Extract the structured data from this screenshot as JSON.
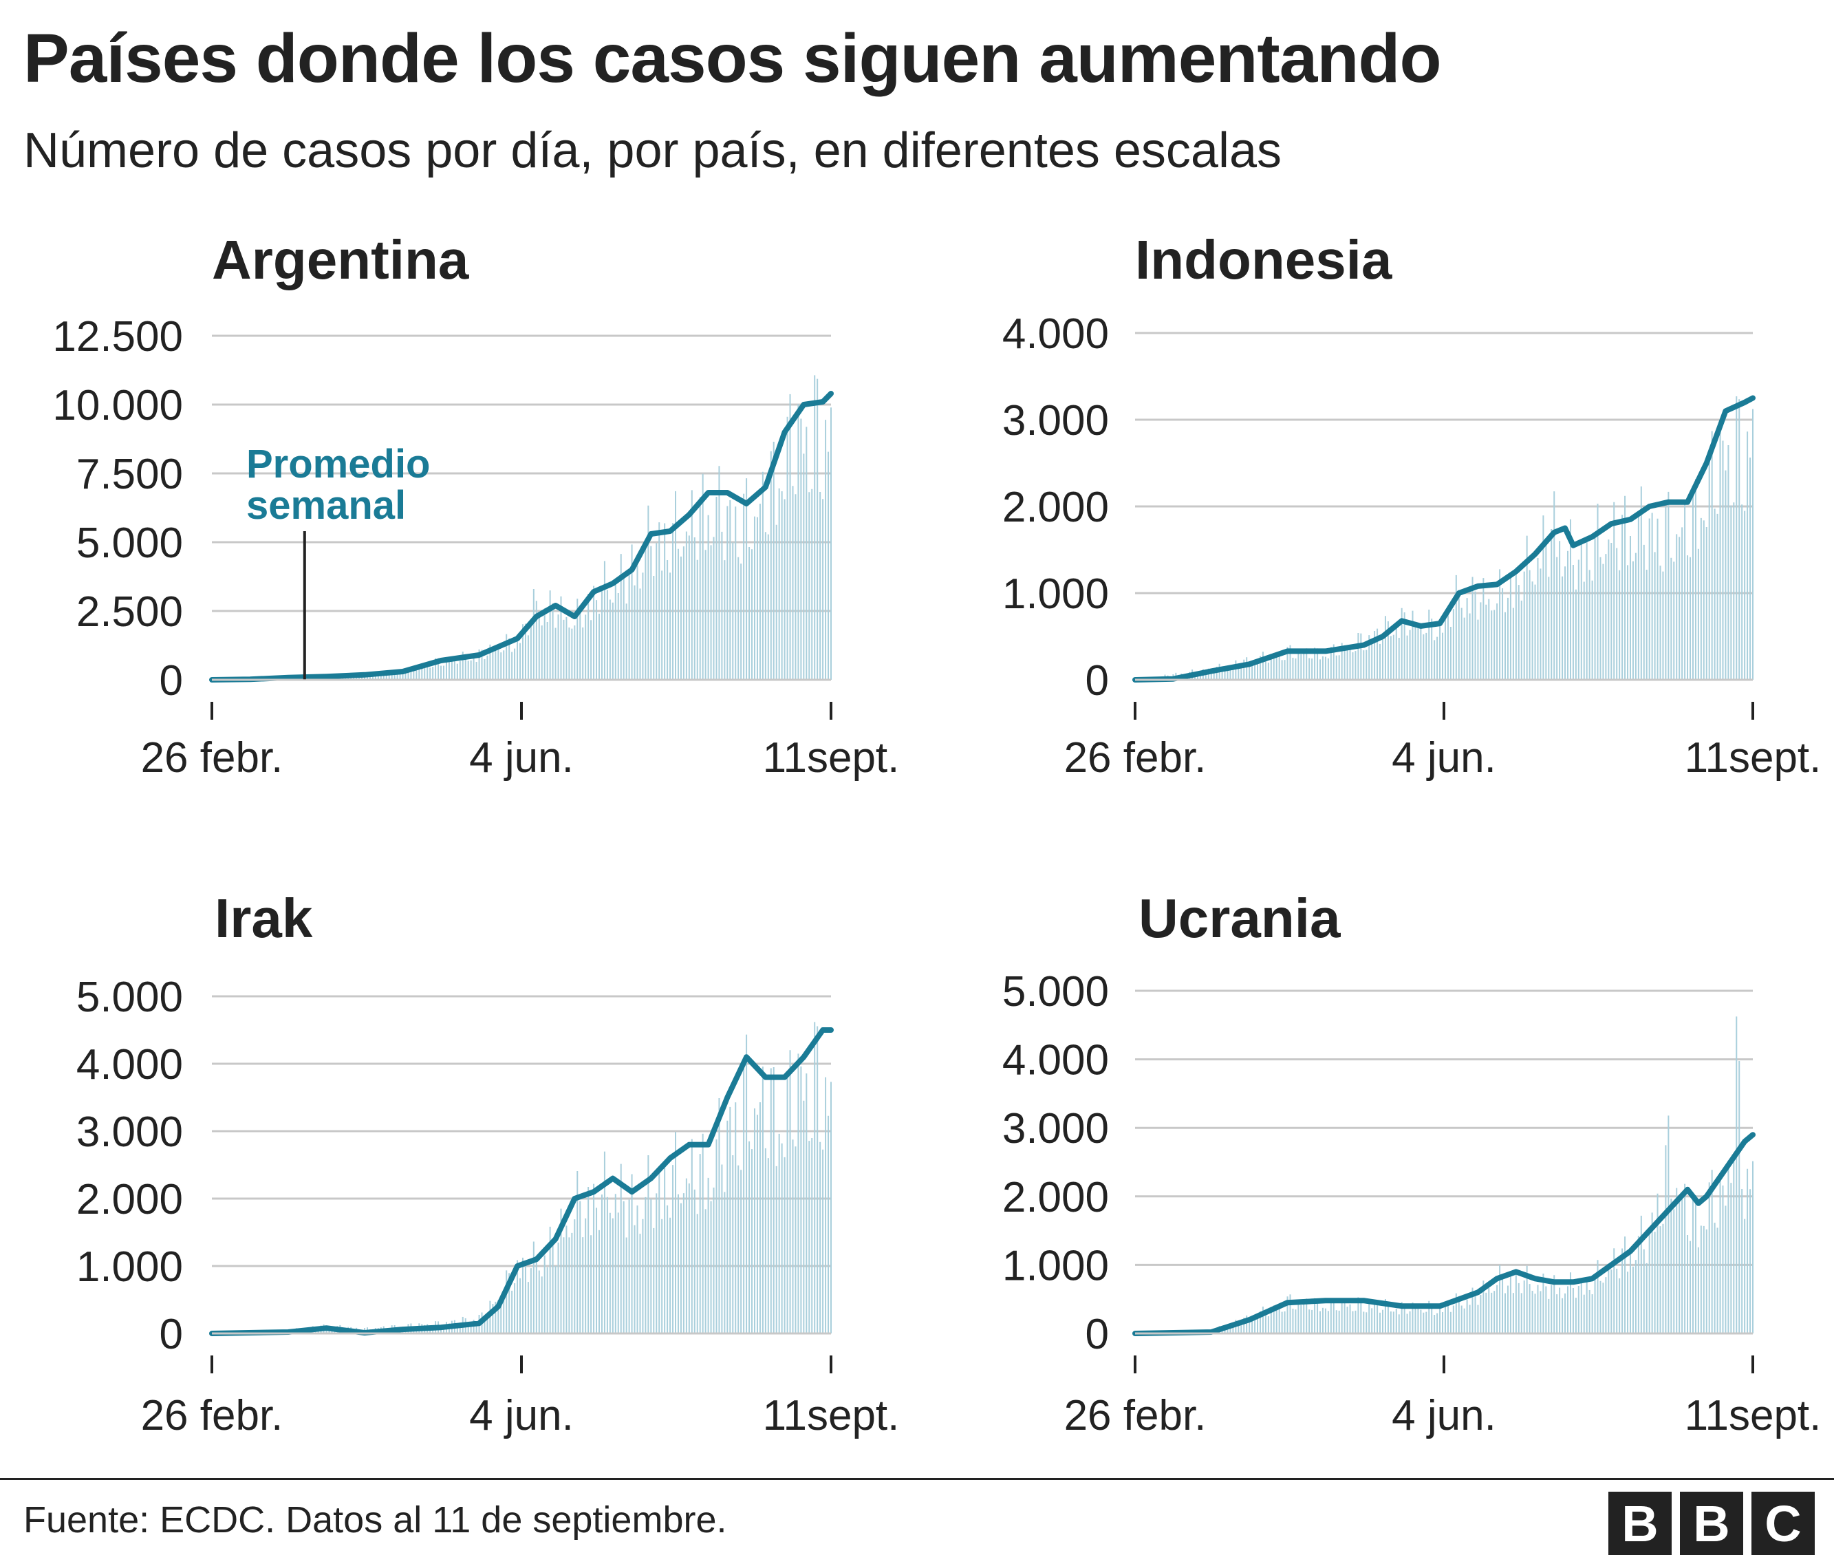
{
  "title": "Países donde los casos siguen aumentando",
  "subtitle": "Número de casos por día, por país, en diferentes escalas",
  "source": "Fuente: ECDC. Datos al 11 de septiembre.",
  "logo": [
    "B",
    "B",
    "C"
  ],
  "colors": {
    "line": "#1a7b96",
    "bars": "#a9cfdc",
    "grid": "#c8c8c8",
    "axis": "#222222",
    "annotation": "#1a7b96"
  },
  "chart_data": [
    {
      "type": "bar",
      "title": "Argentina",
      "x_ticks": [
        "26 febr.",
        "4 jun.",
        "11sept."
      ],
      "x_range": [
        "2020-02-26",
        "2020-09-11"
      ],
      "ylim": [
        0,
        12500
      ],
      "y_ticks": [
        "0",
        "2.500",
        "5.000",
        "7.500",
        "10.000",
        "12.500"
      ],
      "y_tick_values": [
        0,
        2500,
        5000,
        7500,
        10000,
        12500
      ],
      "series": [
        {
          "name": "Promedio semanal",
          "type": "line",
          "points": [
            [
              0,
              0
            ],
            [
              14,
              20
            ],
            [
              28,
              80
            ],
            [
              42,
              120
            ],
            [
              56,
              180
            ],
            [
              70,
              300
            ],
            [
              84,
              700
            ],
            [
              98,
              900
            ],
            [
              112,
              1500
            ],
            [
              119,
              2300
            ],
            [
              126,
              2700
            ],
            [
              133,
              2300
            ],
            [
              140,
              3200
            ],
            [
              147,
              3500
            ],
            [
              154,
              4000
            ],
            [
              161,
              5300
            ],
            [
              168,
              5400
            ],
            [
              175,
              6000
            ],
            [
              182,
              6800
            ],
            [
              189,
              6800
            ],
            [
              196,
              6400
            ],
            [
              203,
              7000
            ],
            [
              210,
              9000
            ],
            [
              217,
              10000
            ],
            [
              224,
              10100
            ],
            [
              227,
              10400
            ]
          ]
        }
      ],
      "daily_envelope": [
        [
          0,
          0
        ],
        [
          28,
          120
        ],
        [
          56,
          250
        ],
        [
          70,
          400
        ],
        [
          84,
          900
        ],
        [
          98,
          1200
        ],
        [
          112,
          1900
        ],
        [
          119,
          3600
        ],
        [
          126,
          3400
        ],
        [
          133,
          2800
        ],
        [
          140,
          4000
        ],
        [
          147,
          4600
        ],
        [
          154,
          5200
        ],
        [
          161,
          6600
        ],
        [
          168,
          6800
        ],
        [
          175,
          7300
        ],
        [
          182,
          8300
        ],
        [
          189,
          7800
        ],
        [
          196,
          7600
        ],
        [
          203,
          8600
        ],
        [
          210,
          10800
        ],
        [
          217,
          11900
        ],
        [
          224,
          11800
        ],
        [
          227,
          12200
        ]
      ],
      "annotation": {
        "label": [
          "Promedio",
          "semanal"
        ],
        "x": 34
      }
    },
    {
      "type": "bar",
      "title": "Indonesia",
      "x_ticks": [
        "26 febr.",
        "4 jun.",
        "11sept."
      ],
      "x_range": [
        "2020-02-26",
        "2020-09-11"
      ],
      "ylim": [
        0,
        4000
      ],
      "y_ticks": [
        "0",
        "1.000",
        "2.000",
        "3.000",
        "4.000"
      ],
      "y_tick_values": [
        0,
        1000,
        2000,
        3000,
        4000
      ],
      "series": [
        {
          "name": "",
          "type": "line",
          "points": [
            [
              0,
              0
            ],
            [
              14,
              10
            ],
            [
              28,
              100
            ],
            [
              42,
              180
            ],
            [
              56,
              330
            ],
            [
              70,
              330
            ],
            [
              84,
              400
            ],
            [
              91,
              500
            ],
            [
              98,
              680
            ],
            [
              105,
              620
            ],
            [
              112,
              650
            ],
            [
              119,
              1000
            ],
            [
              126,
              1080
            ],
            [
              133,
              1100
            ],
            [
              140,
              1250
            ],
            [
              147,
              1450
            ],
            [
              154,
              1700
            ],
            [
              158,
              1750
            ],
            [
              161,
              1550
            ],
            [
              168,
              1650
            ],
            [
              175,
              1800
            ],
            [
              182,
              1850
            ],
            [
              189,
              2000
            ],
            [
              196,
              2050
            ],
            [
              203,
              2050
            ],
            [
              210,
              2500
            ],
            [
              217,
              3100
            ],
            [
              224,
              3200
            ],
            [
              227,
              3250
            ]
          ]
        }
      ],
      "daily_envelope": [
        [
          0,
          0
        ],
        [
          28,
          160
        ],
        [
          56,
          420
        ],
        [
          70,
          400
        ],
        [
          84,
          600
        ],
        [
          98,
          900
        ],
        [
          112,
          800
        ],
        [
          119,
          1300
        ],
        [
          126,
          1250
        ],
        [
          133,
          1250
        ],
        [
          140,
          1500
        ],
        [
          147,
          1800
        ],
        [
          154,
          2300
        ],
        [
          161,
          1800
        ],
        [
          168,
          2000
        ],
        [
          175,
          2200
        ],
        [
          182,
          2300
        ],
        [
          189,
          2300
        ],
        [
          196,
          2250
        ],
        [
          203,
          2300
        ],
        [
          210,
          2900
        ],
        [
          217,
          3500
        ],
        [
          224,
          3500
        ],
        [
          227,
          3850
        ]
      ]
    },
    {
      "type": "bar",
      "title": "Irak",
      "x_ticks": [
        "26 febr.",
        "4 jun.",
        "11sept."
      ],
      "x_range": [
        "2020-02-26",
        "2020-09-11"
      ],
      "ylim": [
        0,
        5000
      ],
      "y_ticks": [
        "0",
        "1.000",
        "2.000",
        "3.000",
        "4.000",
        "5.000"
      ],
      "y_tick_values": [
        0,
        1000,
        2000,
        3000,
        4000,
        5000
      ],
      "series": [
        {
          "name": "",
          "type": "line",
          "points": [
            [
              0,
              0
            ],
            [
              28,
              20
            ],
            [
              42,
              80
            ],
            [
              56,
              10
            ],
            [
              70,
              60
            ],
            [
              84,
              90
            ],
            [
              98,
              150
            ],
            [
              105,
              400
            ],
            [
              112,
              1000
            ],
            [
              119,
              1100
            ],
            [
              126,
              1400
            ],
            [
              133,
              2000
            ],
            [
              140,
              2100
            ],
            [
              147,
              2300
            ],
            [
              154,
              2100
            ],
            [
              161,
              2300
            ],
            [
              168,
              2600
            ],
            [
              175,
              2800
            ],
            [
              182,
              2800
            ],
            [
              189,
              3500
            ],
            [
              196,
              4100
            ],
            [
              203,
              3800
            ],
            [
              210,
              3800
            ],
            [
              217,
              4100
            ],
            [
              224,
              4500
            ],
            [
              227,
              4500
            ]
          ]
        }
      ],
      "daily_envelope": [
        [
          0,
          0
        ],
        [
          28,
          60
        ],
        [
          42,
          150
        ],
        [
          56,
          90
        ],
        [
          70,
          150
        ],
        [
          84,
          200
        ],
        [
          98,
          300
        ],
        [
          105,
          700
        ],
        [
          112,
          1300
        ],
        [
          119,
          1400
        ],
        [
          126,
          1800
        ],
        [
          133,
          2400
        ],
        [
          140,
          2600
        ],
        [
          147,
          2800
        ],
        [
          154,
          2500
        ],
        [
          161,
          2700
        ],
        [
          168,
          3000
        ],
        [
          175,
          3100
        ],
        [
          182,
          3200
        ],
        [
          189,
          3900
        ],
        [
          196,
          4600
        ],
        [
          203,
          4400
        ],
        [
          210,
          4300
        ],
        [
          217,
          5000
        ],
        [
          224,
          4900
        ],
        [
          227,
          4600
        ]
      ]
    },
    {
      "type": "bar",
      "title": "Ucrania",
      "x_ticks": [
        "26 febr.",
        "4 jun.",
        "11sept."
      ],
      "x_range": [
        "2020-02-26",
        "2020-09-11"
      ],
      "ylim": [
        0,
        5000
      ],
      "y_ticks": [
        "0",
        "1.000",
        "2.000",
        "3.000",
        "4.000",
        "5.000"
      ],
      "y_tick_values": [
        0,
        1000,
        2000,
        3000,
        4000,
        5000
      ],
      "series": [
        {
          "name": "",
          "type": "line",
          "points": [
            [
              0,
              0
            ],
            [
              28,
              20
            ],
            [
              42,
              200
            ],
            [
              56,
              450
            ],
            [
              70,
              480
            ],
            [
              84,
              480
            ],
            [
              98,
              400
            ],
            [
              112,
              400
            ],
            [
              126,
              600
            ],
            [
              133,
              800
            ],
            [
              140,
              900
            ],
            [
              147,
              800
            ],
            [
              154,
              750
            ],
            [
              161,
              750
            ],
            [
              168,
              800
            ],
            [
              175,
              1000
            ],
            [
              182,
              1200
            ],
            [
              189,
              1500
            ],
            [
              196,
              1800
            ],
            [
              203,
              2100
            ],
            [
              207,
              1900
            ],
            [
              210,
              2000
            ],
            [
              217,
              2400
            ],
            [
              224,
              2800
            ],
            [
              227,
              2900
            ]
          ]
        }
      ],
      "daily_envelope": [
        [
          0,
          0
        ],
        [
          28,
          60
        ],
        [
          42,
          300
        ],
        [
          56,
          600
        ],
        [
          70,
          550
        ],
        [
          84,
          560
        ],
        [
          98,
          500
        ],
        [
          112,
          480
        ],
        [
          126,
          750
        ],
        [
          133,
          1000
        ],
        [
          140,
          1050
        ],
        [
          147,
          950
        ],
        [
          154,
          900
        ],
        [
          161,
          900
        ],
        [
          168,
          1000
        ],
        [
          175,
          1300
        ],
        [
          182,
          1600
        ],
        [
          189,
          1900
        ],
        [
          196,
          3300
        ],
        [
          203,
          2300
        ],
        [
          207,
          2200
        ],
        [
          210,
          2500
        ],
        [
          217,
          2700
        ],
        [
          221,
          4950
        ],
        [
          224,
          3000
        ],
        [
          227,
          3100
        ]
      ]
    }
  ]
}
